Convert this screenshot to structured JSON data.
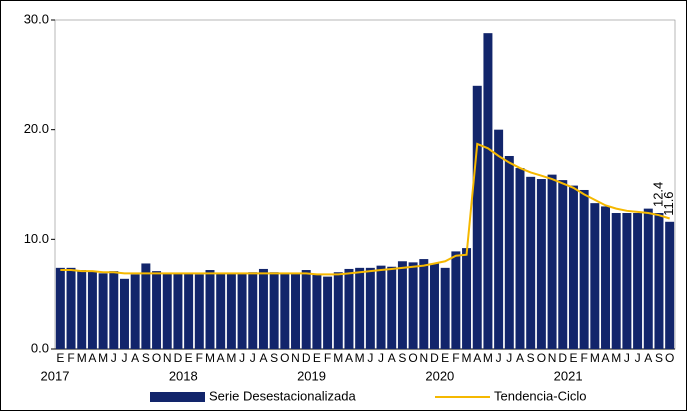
{
  "chart_data": {
    "type": "bar",
    "categories": [
      "E",
      "F",
      "M",
      "A",
      "M",
      "J",
      "J",
      "A",
      "S",
      "O",
      "N",
      "D",
      "E",
      "F",
      "M",
      "A",
      "M",
      "J",
      "J",
      "A",
      "S",
      "O",
      "N",
      "D",
      "E",
      "F",
      "M",
      "A",
      "M",
      "J",
      "J",
      "A",
      "S",
      "O",
      "N",
      "D",
      "E",
      "F",
      "M",
      "A",
      "M",
      "J",
      "J",
      "A",
      "S",
      "O",
      "N",
      "D",
      "E",
      "F",
      "M",
      "A",
      "M",
      "J",
      "J",
      "A",
      "S",
      "O"
    ],
    "category_groups": [
      "2017",
      null,
      null,
      null,
      null,
      null,
      null,
      null,
      null,
      null,
      null,
      null,
      "2018",
      null,
      null,
      null,
      null,
      null,
      null,
      null,
      null,
      null,
      null,
      null,
      "2019",
      null,
      null,
      null,
      null,
      null,
      null,
      null,
      null,
      null,
      null,
      null,
      "2020",
      null,
      null,
      null,
      null,
      null,
      null,
      null,
      null,
      null,
      null,
      null,
      "2021",
      null,
      null,
      null,
      null,
      null,
      null,
      null,
      null,
      null
    ],
    "series": [
      {
        "name": "Serie Desestacionalizada",
        "type": "bar",
        "color": "#12256b",
        "values": [
          7.4,
          7.4,
          7.2,
          7.1,
          6.9,
          7.1,
          6.4,
          6.8,
          7.8,
          7.1,
          6.9,
          6.9,
          6.9,
          6.8,
          7.2,
          6.9,
          6.9,
          6.9,
          7.0,
          7.3,
          7.0,
          6.9,
          6.9,
          7.2,
          6.8,
          6.6,
          7.0,
          7.3,
          7.4,
          7.4,
          7.6,
          7.5,
          8.0,
          7.9,
          8.2,
          7.8,
          7.4,
          8.9,
          9.2,
          24.0,
          28.8,
          20.0,
          17.6,
          16.5,
          15.7,
          15.5,
          15.9,
          15.4,
          14.9,
          14.5,
          13.3,
          13.0,
          12.4,
          12.4,
          12.4,
          12.8,
          12.4,
          11.6
        ],
        "value_labels": [
          null,
          null,
          null,
          null,
          null,
          null,
          null,
          null,
          null,
          null,
          null,
          null,
          null,
          null,
          null,
          null,
          null,
          null,
          null,
          null,
          null,
          null,
          null,
          null,
          null,
          null,
          null,
          null,
          null,
          null,
          null,
          null,
          null,
          null,
          null,
          null,
          null,
          null,
          null,
          null,
          null,
          null,
          null,
          null,
          null,
          null,
          null,
          null,
          null,
          null,
          null,
          null,
          null,
          null,
          null,
          null,
          "12.4",
          "11.6"
        ]
      },
      {
        "name": "Tendencia-Ciclo",
        "type": "line",
        "color": "#f5b800",
        "values": [
          7.2,
          7.2,
          7.1,
          7.1,
          7.0,
          7.0,
          6.9,
          6.9,
          6.9,
          6.9,
          6.9,
          6.9,
          6.9,
          6.9,
          6.9,
          6.9,
          6.9,
          6.9,
          6.9,
          6.9,
          6.9,
          6.9,
          6.9,
          6.9,
          6.8,
          6.8,
          6.8,
          6.9,
          7.0,
          7.1,
          7.2,
          7.3,
          7.4,
          7.5,
          7.6,
          7.8,
          8.0,
          8.5,
          8.6,
          18.7,
          18.3,
          17.6,
          17.0,
          16.5,
          16.1,
          15.8,
          15.5,
          15.1,
          14.7,
          14.1,
          13.6,
          13.1,
          12.8,
          12.6,
          12.5,
          12.4,
          12.2,
          11.9
        ]
      }
    ],
    "ylim": [
      0,
      30
    ],
    "yticks": [
      {
        "value": 0,
        "label": "0.0"
      },
      {
        "value": 10,
        "label": "10.0"
      },
      {
        "value": 20,
        "label": "20.0"
      },
      {
        "value": 30,
        "label": "30.0"
      }
    ],
    "legend": "bottom"
  }
}
